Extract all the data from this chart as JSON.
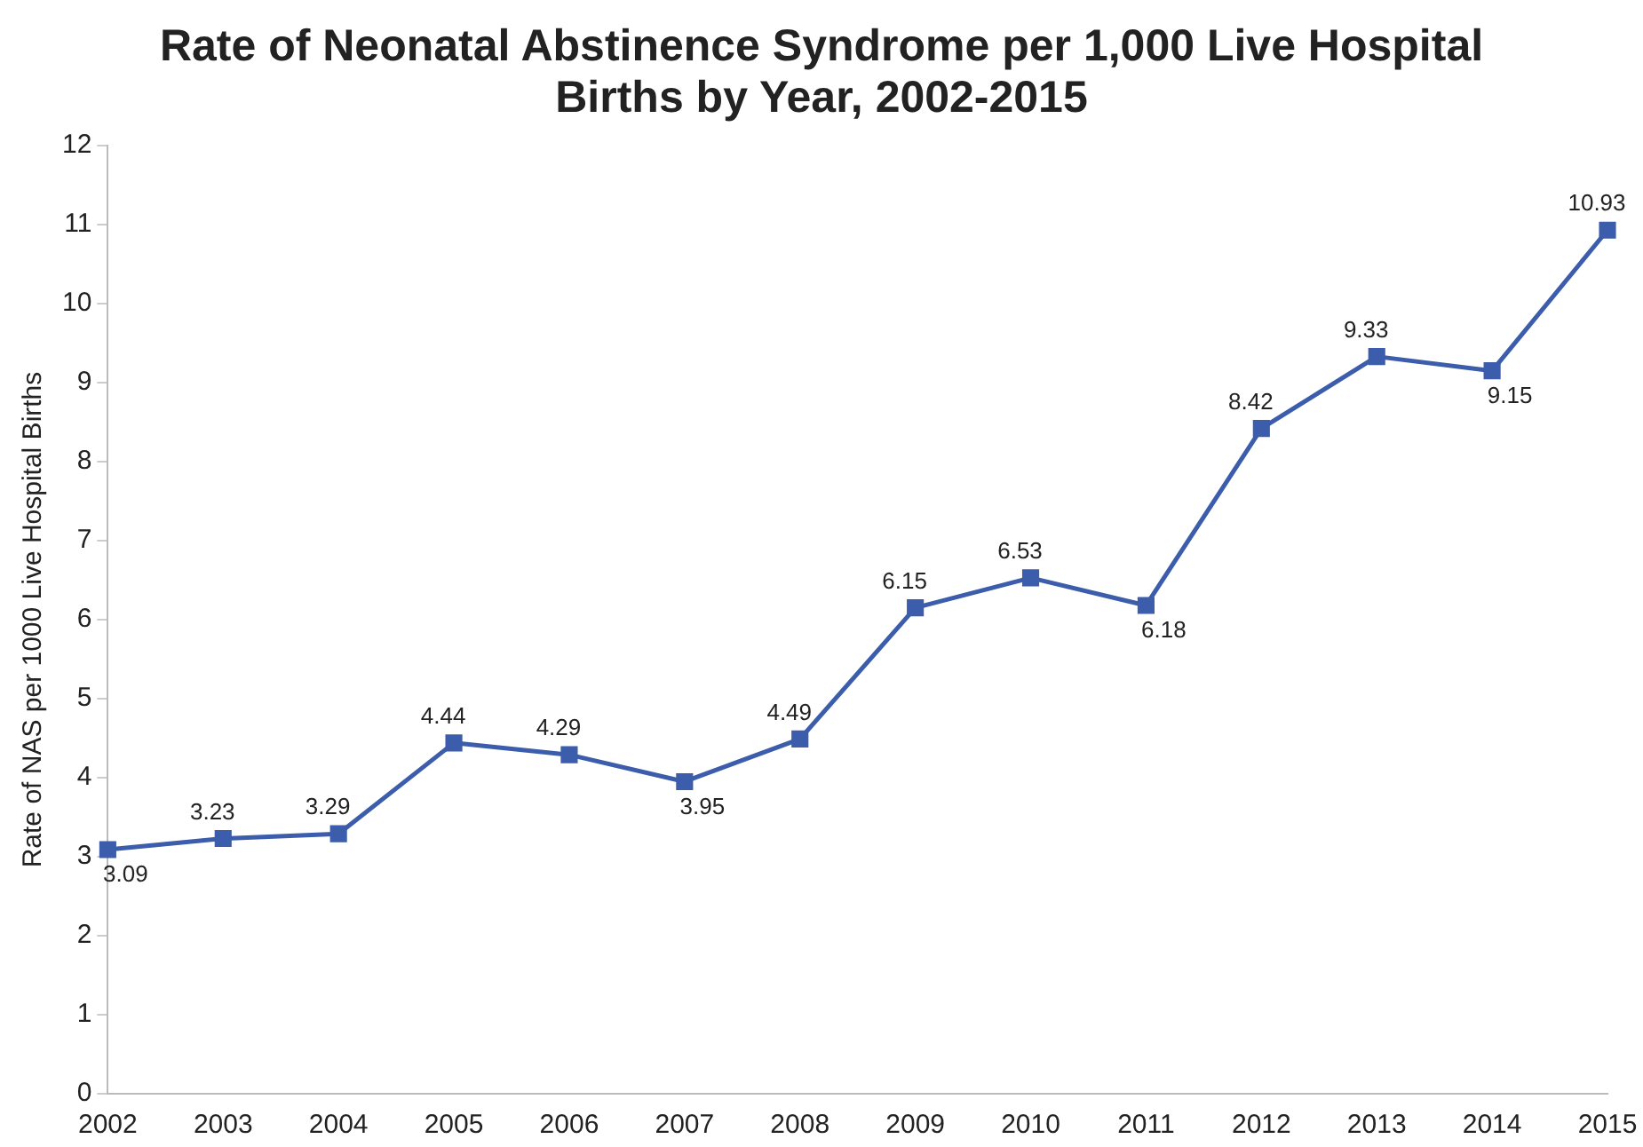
{
  "chart_data": {
    "type": "line",
    "title": "Rate of Neonatal Abstinence Syndrome per 1,000 Live Hospital Births by Year, 2002-2015",
    "ylabel": "Rate of NAS per 1000 Live Hospital Births",
    "categories": [
      "2002",
      "2003",
      "2004",
      "2005",
      "2006",
      "2007",
      "2008",
      "2009",
      "2010",
      "2011",
      "2012",
      "2013",
      "2014",
      "2015"
    ],
    "series": [
      {
        "color": "#3b5dab",
        "values": [
          3.09,
          3.23,
          3.29,
          4.44,
          4.29,
          3.95,
          4.49,
          6.15,
          6.53,
          6.18,
          8.42,
          9.33,
          9.15,
          10.93
        ]
      }
    ],
    "ylim": [
      0,
      12
    ],
    "yticks": [
      0,
      1,
      2,
      3,
      4,
      5,
      6,
      7,
      8,
      9,
      10,
      11,
      12
    ],
    "grid": false,
    "legend": false,
    "marker": "square",
    "line_style": "solid",
    "data_labels": true
  }
}
